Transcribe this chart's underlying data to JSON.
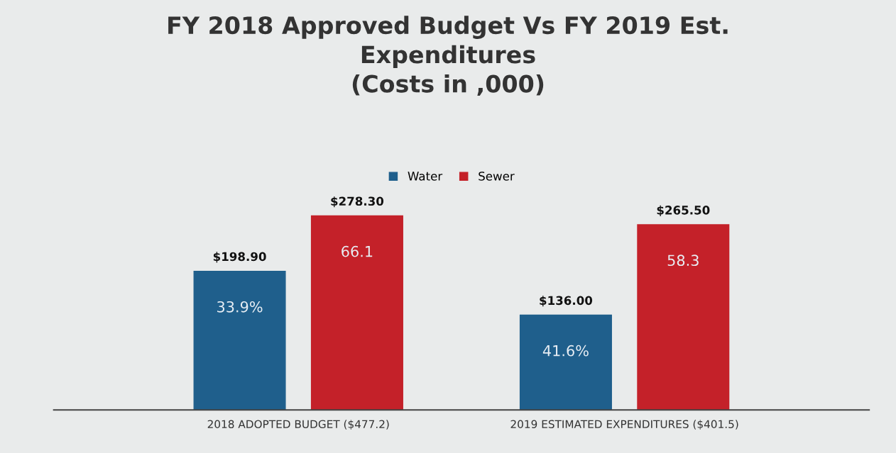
{
  "chart_data": {
    "type": "bar",
    "title": "FY 2018 Approved Budget Vs FY 2019 Est.\nExpenditures\n(Costs in ,000)",
    "categories": [
      "2018 ADOPTED BUDGET ($477.2)",
      "2019 ESTIMATED EXPENDITURES ($401.5)"
    ],
    "series": [
      {
        "name": "Water",
        "color": "#1f5f8c",
        "values": [
          198.9,
          136.0
        ],
        "value_labels": [
          "$198.90",
          "$136.00"
        ]
      },
      {
        "name": "Sewer",
        "color": "#c42129",
        "values": [
          278.3,
          265.5
        ],
        "value_labels": [
          "$278.30",
          "$265.50"
        ]
      }
    ],
    "annotations": [
      "33.9%",
      "66.1",
      "41.6%",
      "58.3"
    ],
    "legend": "top",
    "grid": false,
    "tick_labels": "x"
  }
}
